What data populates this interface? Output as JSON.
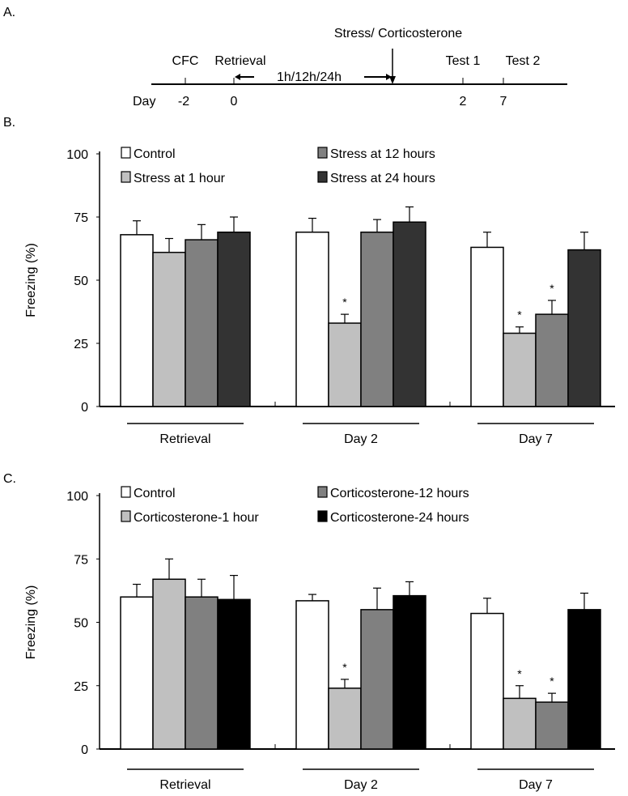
{
  "panel_labels": [
    "A.",
    "B.",
    "C."
  ],
  "timeline": {
    "event_top": "Stress/ Corticosterone",
    "events": [
      "CFC",
      "Retrieval",
      "Test 1",
      "Test 2"
    ],
    "interval": "1h/12h/24h",
    "day_label": "Day",
    "days": [
      "-2",
      "0",
      "2",
      "7"
    ]
  },
  "chart_data": [
    {
      "type": "bar",
      "panel": "B",
      "ylabel": "Freezing (%)",
      "ylim": [
        0,
        100
      ],
      "yticks": [
        "0",
        "25",
        "50",
        "75",
        "100"
      ],
      "categories": [
        "Retrieval",
        "Day 2",
        "Day 7"
      ],
      "series": [
        {
          "name": "Control",
          "color": "#ffffff",
          "values": [
            68,
            69,
            63
          ],
          "errors": [
            5.5,
            5.5,
            6
          ],
          "sig": [
            false,
            false,
            false
          ]
        },
        {
          "name": "Stress at 1 hour",
          "color": "#c0c0c0",
          "values": [
            61,
            33,
            29
          ],
          "errors": [
            5.5,
            3.5,
            2.5
          ],
          "sig": [
            false,
            true,
            true
          ]
        },
        {
          "name": "Stress at 12 hours",
          "color": "#808080",
          "values": [
            66,
            69,
            36.5
          ],
          "errors": [
            6,
            5,
            5.5
          ],
          "sig": [
            false,
            false,
            true
          ]
        },
        {
          "name": "Stress at 24 hours",
          "color": "#333333",
          "values": [
            69,
            73,
            62
          ],
          "errors": [
            6,
            6,
            7
          ],
          "sig": [
            false,
            false,
            false
          ]
        }
      ],
      "sig_marker": "*",
      "legend": "top"
    },
    {
      "type": "bar",
      "panel": "C",
      "ylabel": "Freezing (%)",
      "ylim": [
        0,
        100
      ],
      "yticks": [
        "0",
        "25",
        "50",
        "75",
        "100"
      ],
      "categories": [
        "Retrieval",
        "Day 2",
        "Day 7"
      ],
      "series": [
        {
          "name": "Control",
          "color": "#ffffff",
          "values": [
            60,
            58.5,
            53.5
          ],
          "errors": [
            5,
            2.5,
            6
          ],
          "sig": [
            false,
            false,
            false
          ]
        },
        {
          "name": "Corticosterone-1 hour",
          "color": "#c0c0c0",
          "values": [
            67,
            24,
            20
          ],
          "errors": [
            8,
            3.5,
            5
          ],
          "sig": [
            false,
            true,
            true
          ]
        },
        {
          "name": "Corticosterone-12 hours",
          "color": "#808080",
          "values": [
            60,
            55,
            18.5
          ],
          "errors": [
            7,
            8.5,
            3.5
          ],
          "sig": [
            false,
            false,
            true
          ]
        },
        {
          "name": "Corticosterone-24 hours",
          "color": "#000000",
          "values": [
            59,
            60.5,
            55
          ],
          "errors": [
            9.5,
            5.5,
            6.5
          ],
          "sig": [
            false,
            false,
            false
          ]
        }
      ],
      "sig_marker": "*",
      "legend": "top"
    }
  ]
}
